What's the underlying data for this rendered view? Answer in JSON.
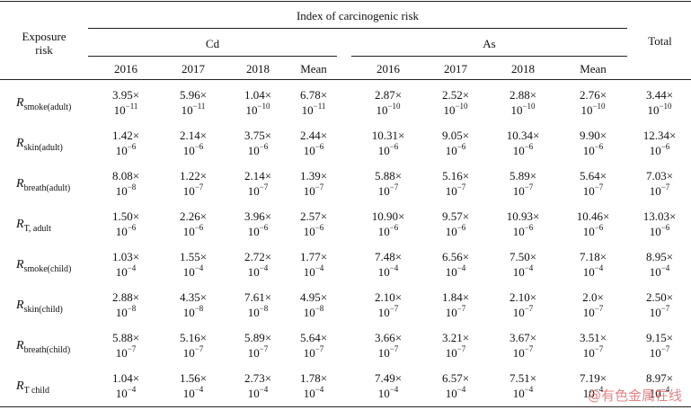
{
  "header": {
    "exposure_risk_line1": "Exposure",
    "exposure_risk_line2": "risk",
    "index_title": "Index of carcinogenic risk",
    "group_cd": "Cd",
    "group_as": "As",
    "total": "Total",
    "years": [
      "2016",
      "2017",
      "2018",
      "Mean",
      "2016",
      "2017",
      "2018",
      "Mean"
    ]
  },
  "rows": [
    {
      "main": "R",
      "sub": "smoke(adult)",
      "cells": [
        [
          "3.95",
          "-11"
        ],
        [
          "5.96",
          "-11"
        ],
        [
          "1.04",
          "-10"
        ],
        [
          "6.78",
          "-11"
        ],
        [
          "2.87",
          "-10"
        ],
        [
          "2.52",
          "-10"
        ],
        [
          "2.88",
          "-10"
        ],
        [
          "2.76",
          "-10"
        ],
        [
          "3.44",
          "-10"
        ]
      ]
    },
    {
      "main": "R",
      "sub": "skin(adult)",
      "cells": [
        [
          "1.42",
          "-6"
        ],
        [
          "2.14",
          "-6"
        ],
        [
          "3.75",
          "-6"
        ],
        [
          "2.44",
          "-6"
        ],
        [
          "10.31",
          "-6"
        ],
        [
          "9.05",
          "-6"
        ],
        [
          "10.34",
          "-6"
        ],
        [
          "9.90",
          "-6"
        ],
        [
          "12.34",
          "-6"
        ]
      ]
    },
    {
      "main": "R",
      "sub": "breath(adult)",
      "cells": [
        [
          "8.08",
          "-8"
        ],
        [
          "1.22",
          "-7"
        ],
        [
          "2.14",
          "-7"
        ],
        [
          "1.39",
          "-7"
        ],
        [
          "5.88",
          "-7"
        ],
        [
          "5.16",
          "-7"
        ],
        [
          "5.89",
          "-7"
        ],
        [
          "5.64",
          "-7"
        ],
        [
          "7.03",
          "-7"
        ]
      ]
    },
    {
      "main": "R",
      "sub": "T, adult",
      "cells": [
        [
          "1.50",
          "-6"
        ],
        [
          "2.26",
          "-6"
        ],
        [
          "3.96",
          "-6"
        ],
        [
          "2.57",
          "-6"
        ],
        [
          "10.90",
          "-6"
        ],
        [
          "9.57",
          "-6"
        ],
        [
          "10.93",
          "-6"
        ],
        [
          "10.46",
          "-6"
        ],
        [
          "13.03",
          "-6"
        ]
      ]
    },
    {
      "main": "R",
      "sub": "smoke(child)",
      "cells": [
        [
          "1.03",
          "-4"
        ],
        [
          "1.55",
          "-4"
        ],
        [
          "2.72",
          "-4"
        ],
        [
          "1.77",
          "-4"
        ],
        [
          "7.48",
          "-4"
        ],
        [
          "6.56",
          "-4"
        ],
        [
          "7.50",
          "-4"
        ],
        [
          "7.18",
          "-4"
        ],
        [
          "8.95",
          "-4"
        ]
      ]
    },
    {
      "main": "R",
      "sub": "skin(child)",
      "cells": [
        [
          "2.88",
          "-8"
        ],
        [
          "4.35",
          "-8"
        ],
        [
          "7.61",
          "-8"
        ],
        [
          "4.95",
          "-8"
        ],
        [
          "2.10",
          "-7"
        ],
        [
          "1.84",
          "-7"
        ],
        [
          "2.10",
          "-7"
        ],
        [
          "2.0",
          "-7"
        ],
        [
          "2.50",
          "-7"
        ]
      ]
    },
    {
      "main": "R",
      "sub": "breath(child)",
      "cells": [
        [
          "5.88",
          "-7"
        ],
        [
          "5.16",
          "-7"
        ],
        [
          "5.89",
          "-7"
        ],
        [
          "5.64",
          "-7"
        ],
        [
          "3.66",
          "-7"
        ],
        [
          "3.21",
          "-7"
        ],
        [
          "3.67",
          "-7"
        ],
        [
          "3.51",
          "-7"
        ],
        [
          "9.15",
          "-7"
        ]
      ]
    },
    {
      "main": "R",
      "sub": "T child",
      "cells": [
        [
          "1.04",
          "-4"
        ],
        [
          "1.56",
          "-4"
        ],
        [
          "2.73",
          "-4"
        ],
        [
          "1.78",
          "-4"
        ],
        [
          "7.49",
          "-4"
        ],
        [
          "6.57",
          "-4"
        ],
        [
          "7.51",
          "-4"
        ],
        [
          "7.19",
          "-4"
        ],
        [
          "8.97",
          "-4"
        ]
      ]
    }
  ],
  "times_symbol": "×",
  "base": "10",
  "watermark": "@有色金属在线"
}
